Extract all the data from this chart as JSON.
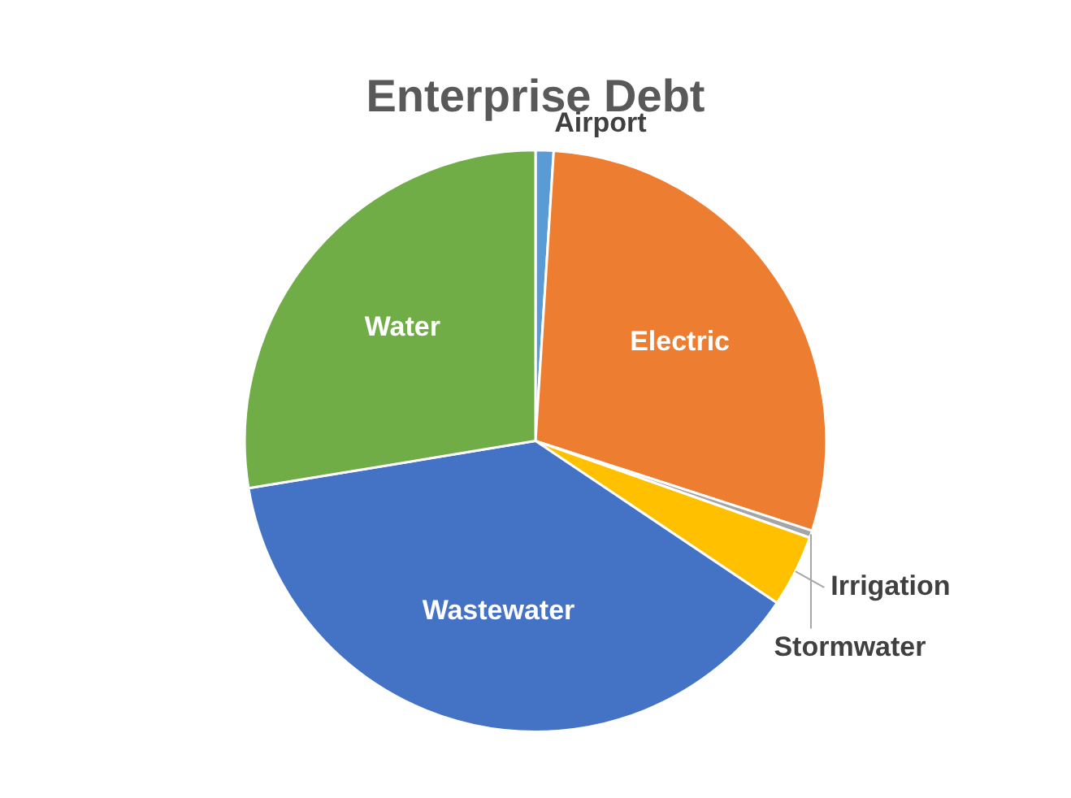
{
  "chart_data": {
    "type": "pie",
    "title": "Enterprise Debt",
    "categories": [
      "Airport",
      "Electric",
      "Stormwater",
      "Irrigation",
      "Wastewater",
      "Water"
    ],
    "values": [
      1,
      29,
      0.4,
      4,
      38,
      27.6
    ],
    "colors": [
      "#5b9bd5",
      "#ed7d31",
      "#a5a5a5",
      "#ffc000",
      "#4472c4",
      "#70ad47"
    ]
  }
}
